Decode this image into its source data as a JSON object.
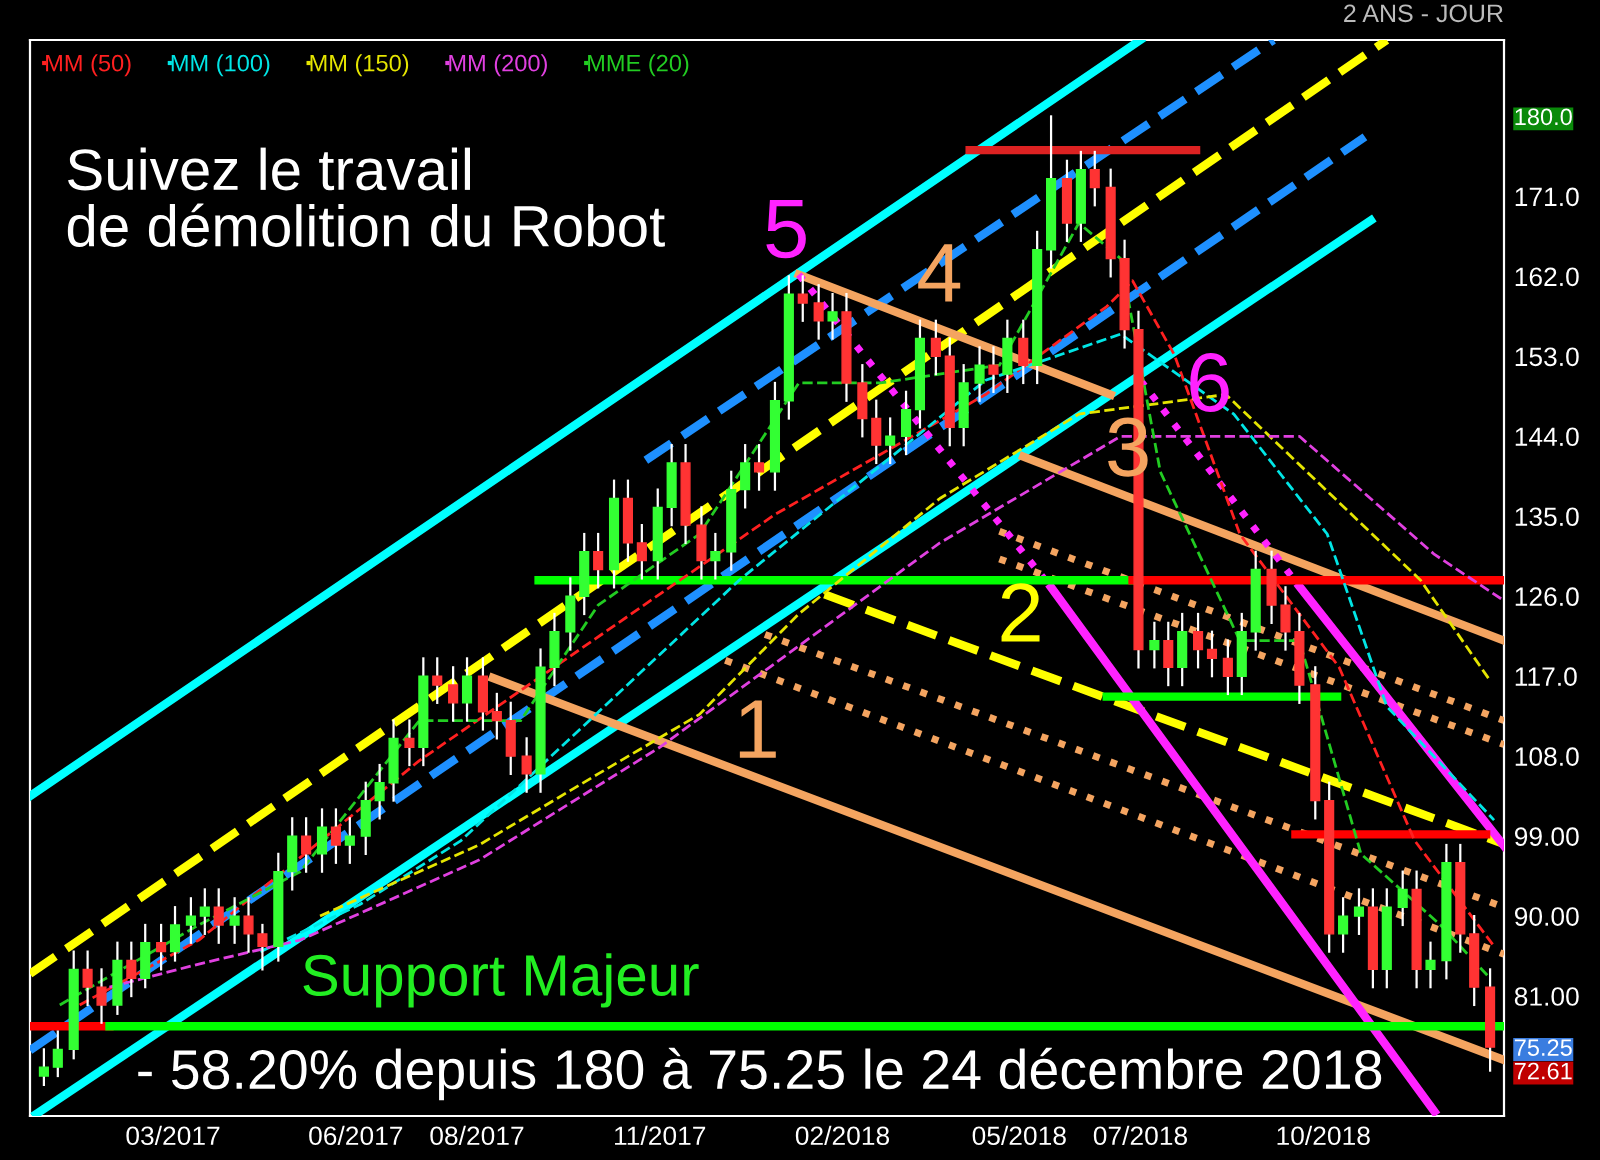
{
  "chart_data": {
    "type": "candlestick",
    "subtitle": "2 ANS - JOUR",
    "annotations": [
      "Suivez le travail\nde démolition du Robot",
      "5",
      "4",
      "3",
      "6",
      "2",
      "1",
      "Support Majeur",
      "- 58.20% depuis 180 à 75.25 le 24 décembre 2018"
    ],
    "x": [
      "2016-12-26",
      "2017-01-02",
      "2017-01-10",
      "2017-01-17",
      "2017-01-24",
      "2017-02-01",
      "2017-02-08",
      "2017-02-15",
      "2017-02-23",
      "2017-03-02",
      "2017-03-10",
      "2017-03-17",
      "2017-03-24",
      "2017-04-01",
      "2017-04-08",
      "2017-04-15",
      "2017-04-23",
      "2017-04-30",
      "2017-05-07",
      "2017-05-15",
      "2017-05-22",
      "2017-05-29",
      "2017-06-06",
      "2017-06-13",
      "2017-06-20",
      "2017-06-28",
      "2017-07-05",
      "2017-07-12",
      "2017-07-20",
      "2017-07-27",
      "2017-08-04",
      "2017-08-11",
      "2017-08-18",
      "2017-08-26",
      "2017-09-02",
      "2017-09-09",
      "2017-09-17",
      "2017-09-24",
      "2017-10-01",
      "2017-10-09",
      "2017-10-16",
      "2017-10-23",
      "2017-10-31",
      "2017-11-07",
      "2017-11-14",
      "2017-11-22",
      "2017-11-29",
      "2017-12-07",
      "2017-12-14",
      "2017-12-21",
      "2017-12-29",
      "2018-01-05",
      "2018-01-12",
      "2018-01-20",
      "2018-01-27",
      "2018-02-03",
      "2018-02-11",
      "2018-02-18",
      "2018-02-25",
      "2018-03-05",
      "2018-03-12",
      "2018-03-20",
      "2018-03-27",
      "2018-04-03",
      "2018-04-11",
      "2018-04-18",
      "2018-04-25",
      "2018-05-03",
      "2018-05-10",
      "2018-05-17",
      "2018-05-25",
      "2018-06-01",
      "2018-06-08",
      "2018-06-16",
      "2018-06-23",
      "2018-06-30",
      "2018-07-08",
      "2018-07-15",
      "2018-07-22",
      "2018-07-30",
      "2018-08-06",
      "2018-08-14",
      "2018-08-21",
      "2018-08-28",
      "2018-09-05",
      "2018-09-12",
      "2018-09-19",
      "2018-09-27",
      "2018-10-04",
      "2018-10-11",
      "2018-10-19",
      "2018-10-26",
      "2018-11-02",
      "2018-11-10",
      "2018-11-17",
      "2018-11-24",
      "2018-12-02",
      "2018-12-09",
      "2018-12-16",
      "2018-12-24"
    ],
    "ohlc": [
      [
        72,
        75,
        71,
        73
      ],
      [
        73,
        77,
        72,
        75
      ],
      [
        75,
        86,
        74,
        84
      ],
      [
        84,
        86,
        80,
        82
      ],
      [
        82,
        84,
        78,
        80
      ],
      [
        80,
        87,
        79,
        85
      ],
      [
        85,
        87,
        81,
        83
      ],
      [
        83,
        89,
        82,
        87
      ],
      [
        87,
        89,
        84,
        86
      ],
      [
        86,
        91,
        85,
        89
      ],
      [
        89,
        92,
        87,
        90
      ],
      [
        90,
        93,
        88,
        91
      ],
      [
        91,
        93,
        87,
        89
      ],
      [
        89,
        92,
        87,
        90
      ],
      [
        90,
        92,
        86,
        88
      ],
      [
        88,
        89,
        84,
        86.6
      ],
      [
        86.6,
        97,
        85,
        95
      ],
      [
        95,
        101,
        93,
        99
      ],
      [
        99,
        101,
        95,
        97
      ],
      [
        97,
        102,
        95,
        100
      ],
      [
        100,
        102,
        96,
        98
      ],
      [
        98,
        101,
        96,
        99
      ],
      [
        99,
        105,
        97,
        103
      ],
      [
        103,
        107,
        101,
        105
      ],
      [
        105,
        112,
        103,
        110
      ],
      [
        110,
        112,
        107,
        109
      ],
      [
        109,
        119,
        107,
        117
      ],
      [
        117,
        119,
        114,
        116
      ],
      [
        116,
        118,
        112,
        114
      ],
      [
        114,
        119,
        112,
        117
      ],
      [
        117,
        119,
        111,
        113
      ],
      [
        113,
        115,
        110,
        112
      ],
      [
        112,
        114,
        106,
        108
      ],
      [
        108,
        110,
        104,
        106
      ],
      [
        106,
        120,
        104,
        118
      ],
      [
        118,
        124,
        116,
        122
      ],
      [
        122,
        128,
        120,
        126
      ],
      [
        126,
        133,
        124,
        131
      ],
      [
        131,
        133,
        127,
        129
      ],
      [
        129,
        139,
        127,
        137
      ],
      [
        137,
        139,
        130,
        132
      ],
      [
        132,
        134,
        128,
        130
      ],
      [
        130,
        138,
        128,
        136
      ],
      [
        136,
        143,
        134,
        141
      ],
      [
        141,
        143,
        132,
        134
      ],
      [
        134,
        136,
        128,
        130
      ],
      [
        130,
        133,
        128,
        131
      ],
      [
        131,
        140,
        129,
        138
      ],
      [
        138,
        143,
        136,
        141
      ],
      [
        141,
        143,
        138,
        140
      ],
      [
        140,
        150,
        138,
        148
      ],
      [
        148,
        162,
        146,
        160
      ],
      [
        160,
        162,
        157,
        159
      ],
      [
        159,
        161,
        155,
        157
      ],
      [
        157,
        160,
        155,
        158
      ],
      [
        158,
        160,
        148,
        150
      ],
      [
        150,
        152,
        144,
        146
      ],
      [
        146,
        148,
        141,
        143
      ],
      [
        143,
        146,
        141,
        144
      ],
      [
        144,
        149,
        142,
        147
      ],
      [
        147,
        157,
        145,
        155
      ],
      [
        155,
        157,
        151,
        153
      ],
      [
        153,
        155,
        143,
        145
      ],
      [
        145,
        152,
        143,
        150
      ],
      [
        150,
        154,
        148,
        152
      ],
      [
        152,
        154,
        149,
        151
      ],
      [
        151,
        157,
        149,
        155
      ],
      [
        155,
        157,
        150,
        152
      ],
      [
        152,
        167,
        150,
        165
      ],
      [
        165,
        180,
        163,
        173
      ],
      [
        173,
        175,
        166,
        168
      ],
      [
        168,
        176,
        166,
        174
      ],
      [
        174,
        176,
        170,
        172
      ],
      [
        172,
        174,
        162,
        164
      ],
      [
        164,
        166,
        154,
        156
      ],
      [
        156,
        158,
        118,
        120
      ],
      [
        120,
        123,
        118,
        121
      ],
      [
        121,
        123,
        116,
        118
      ],
      [
        118,
        124,
        116,
        122
      ],
      [
        122,
        124,
        118,
        120
      ],
      [
        120,
        122,
        117,
        119
      ],
      [
        119,
        121,
        115,
        117
      ],
      [
        117,
        124,
        115,
        122
      ],
      [
        122,
        131,
        120,
        129
      ],
      [
        129,
        131,
        123,
        125
      ],
      [
        125,
        127,
        120,
        122
      ],
      [
        122,
        124,
        114,
        116
      ],
      [
        116,
        118,
        101,
        103
      ],
      [
        103,
        105,
        86,
        88
      ],
      [
        88,
        92,
        86,
        90
      ],
      [
        90,
        93,
        88,
        91
      ],
      [
        91,
        93,
        82,
        84
      ],
      [
        84,
        93,
        82,
        91
      ],
      [
        91,
        95,
        89,
        93
      ],
      [
        93,
        95,
        82,
        84
      ],
      [
        84,
        87,
        82,
        85
      ],
      [
        85,
        98,
        83,
        96
      ],
      [
        96,
        98,
        86,
        88
      ],
      [
        88,
        90,
        80,
        82
      ],
      [
        82,
        84,
        72.61,
        75.25
      ]
    ],
    "colors": [
      "#33ff33",
      "#33ff33",
      "#33ff33",
      "#ff3333",
      "#ff3333",
      "#33ff33",
      "#ff3333",
      "#33ff33",
      "#ff3333",
      "#33ff33",
      "#33ff33",
      "#33ff33",
      "#ff3333",
      "#33ff33",
      "#ff3333",
      "#ff3333",
      "#33ff33",
      "#33ff33",
      "#ff3333",
      "#33ff33",
      "#ff3333",
      "#33ff33",
      "#33ff33",
      "#33ff33",
      "#33ff33",
      "#ff3333",
      "#33ff33",
      "#ff3333",
      "#ff3333",
      "#33ff33",
      "#ff3333",
      "#ff3333",
      "#ff3333",
      "#ff3333",
      "#33ff33",
      "#33ff33",
      "#33ff33",
      "#33ff33",
      "#ff3333",
      "#33ff33",
      "#ff3333",
      "#ff3333",
      "#33ff33",
      "#33ff33",
      "#ff3333",
      "#ff3333",
      "#33ff33",
      "#33ff33",
      "#33ff33",
      "#ff3333",
      "#33ff33",
      "#33ff33",
      "#ff3333",
      "#ff3333",
      "#33ff33",
      "#ff3333",
      "#ff3333",
      "#ff3333",
      "#33ff33",
      "#33ff33",
      "#33ff33",
      "#ff3333",
      "#ff3333",
      "#33ff33",
      "#33ff33",
      "#ff3333",
      "#33ff33",
      "#ff3333",
      "#33ff33",
      "#33ff33",
      "#ff3333",
      "#33ff33",
      "#ff3333",
      "#ff3333",
      "#ff3333",
      "#ff3333",
      "#33ff33",
      "#ff3333",
      "#33ff33",
      "#ff3333",
      "#ff3333",
      "#ff3333",
      "#33ff33",
      "#33ff33",
      "#ff3333",
      "#ff3333",
      "#ff3333",
      "#ff3333",
      "#ff3333",
      "#33ff33",
      "#33ff33",
      "#ff3333",
      "#33ff33",
      "#33ff33",
      "#ff3333",
      "#33ff33",
      "#33ff33",
      "#ff3333",
      "#ff3333",
      "#ff3333"
    ],
    "series": [
      {
        "name": "MM (50)",
        "type": "line",
        "color": "#ff2020",
        "line_style": "dashed",
        "x": [
          "2017-01-13",
          "2017-03-14",
          "2017-07-03",
          "2017-12-29",
          "2018-04-14",
          "2018-06-14",
          "2018-06-27",
          "2018-07-18",
          "2018-08-20",
          "2018-10-09",
          "2018-11-16",
          "2018-12-26"
        ],
        "values": [
          80,
          87.3,
          107.5,
          135.2,
          148.7,
          158.6,
          161.5,
          153.2,
          133,
          118,
          98.5,
          86.6
        ]
      },
      {
        "name": "MM (100)",
        "type": "line",
        "color": "#00e5e5",
        "line_style": "dashed",
        "x": [
          "2017-04-14",
          "2017-06-03",
          "2017-07-24",
          "2017-12-11",
          "2018-04-14",
          "2018-06-21",
          "2018-08-17",
          "2018-10-03",
          "2018-11-02",
          "2018-12-26"
        ],
        "values": [
          86,
          91.3,
          98.5,
          127.8,
          150.3,
          155.5,
          146.5,
          133,
          113.6,
          100.8
        ]
      },
      {
        "name": "MM (150)",
        "type": "line",
        "color": "#e5e500",
        "line_style": "dashed",
        "x": [
          "2017-05-14",
          "2017-08-02",
          "2017-10-01",
          "2017-11-21",
          "2018-01-10",
          "2018-03-22",
          "2018-05-31",
          "2018-08-13",
          "2018-11-19",
          "2018-12-24"
        ],
        "values": [
          90,
          98,
          106,
          112.7,
          124,
          137,
          146.5,
          148.7,
          127.8,
          116.5
        ]
      },
      {
        "name": "MM (200)",
        "type": "line",
        "color": "#e040e0",
        "line_style": "dashed",
        "x": [
          "2017-01-28",
          "2017-03-14",
          "2017-05-04",
          "2017-08-02",
          "2017-11-01",
          "2018-01-10",
          "2018-03-22",
          "2018-06-21",
          "2018-09-19",
          "2018-11-26",
          "2018-12-31"
        ],
        "values": [
          82,
          84.6,
          87.3,
          96.3,
          109,
          120.4,
          132,
          144,
          144,
          130.7,
          125.5
        ]
      },
      {
        "name": "MME (20)",
        "type": "line",
        "color": "#22cc22",
        "line_style": "dashed",
        "x": [
          "2017-01-03",
          "2017-03-14",
          "2017-05-04",
          "2017-07-03",
          "2017-08-23",
          "2017-10-01",
          "2017-11-21",
          "2018-01-10",
          "2018-02-20",
          "2018-04-21",
          "2018-05-31",
          "2018-06-21",
          "2018-07-11",
          "2018-08-20",
          "2018-09-19",
          "2018-10-20",
          "2018-11-29",
          "2018-12-24"
        ],
        "values": [
          80,
          89,
          95,
          112,
          112,
          125,
          133,
          150,
          150,
          152,
          168,
          164,
          140,
          121,
          121,
          97,
          89,
          83
        ]
      },
      {
        "type": "line",
        "color": "#00ffff",
        "line_style": "solid",
        "x": [
          "2016-12-19",
          "2018-07-01"
        ],
        "values": [
          103.5,
          188.6
        ]
      },
      {
        "type": "line",
        "color": "#00ffff",
        "line_style": "solid",
        "x": [
          "2016-12-22",
          "2018-10-25"
        ],
        "values": [
          67.7,
          168.3
        ]
      },
      {
        "type": "line",
        "color": "#1e90ff",
        "line_style": "dashed",
        "x": [
          "2016-12-19",
          "2018-10-22"
        ],
        "values": [
          74.9,
          177.7
        ]
      },
      {
        "type": "line",
        "color": "#1e90ff",
        "line_style": "dashed",
        "x": [
          "2017-10-25",
          "2018-09-06"
        ],
        "values": [
          141.3,
          188.6
        ]
      },
      {
        "type": "line",
        "color": "#ffff00",
        "line_style": "dashed",
        "x": [
          "2016-12-19",
          "2018-11-02"
        ],
        "values": [
          83.5,
          188.6
        ]
      },
      {
        "type": "line",
        "color": "#f4a460",
        "line_style": "solid",
        "x": [
          "2017-08-09",
          "2018-12-31"
        ],
        "values": [
          116.8,
          73.8
        ]
      },
      {
        "type": "line",
        "color": "#f4a460",
        "line_style": "solid",
        "x": [
          "2018-01-10",
          "2018-06-16"
        ],
        "values": [
          162.2,
          148.7
        ]
      },
      {
        "type": "line",
        "color": "#f4a460",
        "line_style": "solid",
        "x": [
          "2018-05-03",
          "2018-12-31"
        ],
        "values": [
          141.7,
          121
        ]
      },
      {
        "type": "line",
        "color": "#f4a460",
        "line_style": "dotted",
        "x": [
          "2018-04-21",
          "2018-12-31"
        ],
        "values": [
          133.3,
          112
        ]
      },
      {
        "type": "line",
        "color": "#f4a460",
        "line_style": "dotted",
        "x": [
          "2018-04-21",
          "2018-12-31"
        ],
        "values": [
          130.2,
          109.3
        ]
      },
      {
        "type": "line",
        "color": "#f4a460",
        "line_style": "dotted",
        "x": [
          "2017-12-24",
          "2018-12-31"
        ],
        "values": [
          121.7,
          91
        ]
      },
      {
        "type": "line",
        "color": "#f4a460",
        "line_style": "dotted",
        "x": [
          "2017-12-04",
          "2018-12-31"
        ],
        "values": [
          118.8,
          85.7
        ]
      },
      {
        "type": "line",
        "color": "#ffff00",
        "line_style": "dashed",
        "x": [
          "2018-01-23",
          "2018-12-31"
        ],
        "values": [
          126.2,
          98.1
        ]
      },
      {
        "type": "line",
        "color": "#ff22ff",
        "line_style": "dotted",
        "x": [
          "2018-01-10",
          "2018-05-17"
        ],
        "values": [
          162.2,
          127
        ]
      },
      {
        "type": "line",
        "color": "#ff22ff",
        "line_style": "solid",
        "x": [
          "2018-05-17",
          "2018-11-26"
        ],
        "values": [
          127,
          68.0
        ]
      },
      {
        "type": "line",
        "color": "#ff22ff",
        "line_style": "dotted",
        "x": [
          "2018-07-01",
          "2018-09-19"
        ],
        "values": [
          150.3,
          127.1
        ]
      },
      {
        "type": "line",
        "color": "#ff22ff",
        "line_style": "solid",
        "x": [
          "2018-09-19",
          "2018-12-31"
        ],
        "values": [
          127.1,
          97.9
        ]
      },
      {
        "type": "line",
        "color": "#dd2222",
        "line_style": "solid",
        "x": [
          "2018-04-06",
          "2018-07-29"
        ],
        "values": [
          176.2,
          176.2
        ]
      },
      {
        "type": "line",
        "color": "#00ff00",
        "line_style": "solid",
        "x": [
          "2017-09-01",
          "2018-06-27"
        ],
        "values": [
          127.8,
          127.8
        ]
      },
      {
        "type": "line",
        "color": "#ff0000",
        "line_style": "solid",
        "x": [
          "2018-06-27",
          "2018-12-31"
        ],
        "values": [
          127.8,
          127.8
        ]
      },
      {
        "type": "line",
        "color": "#00ff00",
        "line_style": "solid",
        "x": [
          "2018-06-14",
          "2018-10-08"
        ],
        "values": [
          114.7,
          114.7
        ]
      },
      {
        "type": "line",
        "color": "#ff0000",
        "line_style": "solid",
        "x": [
          "2018-09-17",
          "2018-12-22"
        ],
        "values": [
          99.2,
          99.2
        ]
      },
      {
        "type": "line",
        "color": "#ff0000",
        "line_style": "solid",
        "x": [
          "2016-12-19",
          "2017-01-28"
        ],
        "values": [
          77.6,
          77.6
        ]
      },
      {
        "type": "line",
        "color": "#00ff00",
        "line_style": "solid",
        "x": [
          "2017-01-28",
          "2018-12-31"
        ],
        "values": [
          77.6,
          77.6
        ]
      }
    ],
    "xlim": [
      "2016-12-19",
      "2018-12-31"
    ],
    "xticks": [
      {
        "value": "2017-03-01",
        "label": "03/2017"
      },
      {
        "value": "2017-06-01",
        "label": "06/2017"
      },
      {
        "value": "2017-08-01",
        "label": "08/2017"
      },
      {
        "value": "2017-11-01",
        "label": "11/2017"
      },
      {
        "value": "2018-02-01",
        "label": "02/2018"
      },
      {
        "value": "2018-05-01",
        "label": "05/2018"
      },
      {
        "value": "2018-07-01",
        "label": "07/2018"
      },
      {
        "value": "2018-10-01",
        "label": "10/2018"
      }
    ],
    "ylim": [
      67.5,
      188.6
    ],
    "yticks": [
      {
        "value": 72.61,
        "label": "72.61"
      },
      {
        "value": 75.25,
        "label": "75.25"
      },
      {
        "value": 81,
        "label": "81.00"
      },
      {
        "value": 90,
        "label": "90.00"
      },
      {
        "value": 99,
        "label": "99.00"
      },
      {
        "value": 108,
        "label": "108.0"
      },
      {
        "value": 117,
        "label": "117.0"
      },
      {
        "value": 126,
        "label": "126.0"
      },
      {
        "value": 135,
        "label": "135.0"
      },
      {
        "value": 144,
        "label": "144.0"
      },
      {
        "value": 153,
        "label": "153.0"
      },
      {
        "value": 162,
        "label": "162.0"
      },
      {
        "value": 171,
        "label": "171.0"
      },
      {
        "value": 180,
        "label": "180.0"
      }
    ],
    "grid": false,
    "legend": "top left"
  }
}
